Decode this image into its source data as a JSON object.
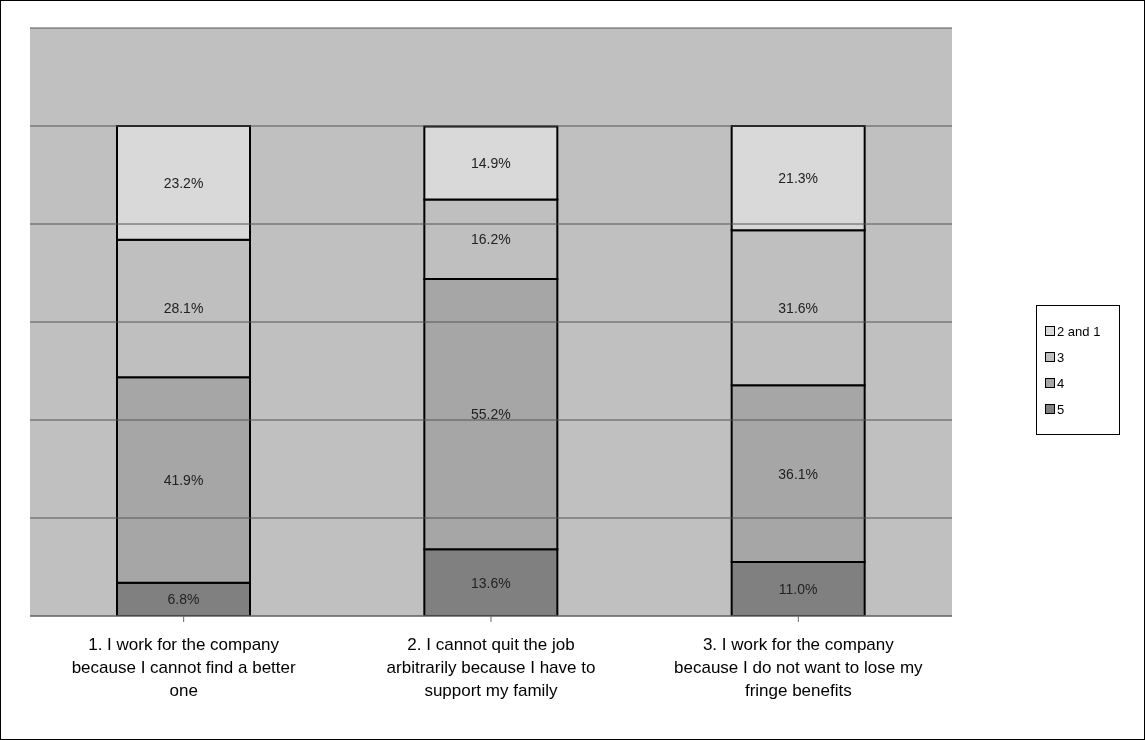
{
  "chart_data": {
    "type": "bar",
    "stacked": true,
    "categories": [
      "1. I work for the company because I cannot find a better one",
      "2. I cannot quit the job arbitrarily because I have to support my family",
      "3. I work for the company because I do not want to lose my fringe benefits"
    ],
    "series": [
      {
        "name": "5",
        "color": "#808080",
        "values": [
          6.8,
          13.6,
          11.0
        ],
        "value_labels": [
          "6.8%",
          "13.6%",
          "11.0%"
        ]
      },
      {
        "name": "4",
        "color": "#a6a6a6",
        "values": [
          41.9,
          55.2,
          36.1
        ],
        "value_labels": [
          "41.9%",
          "55.2%",
          "36.1%"
        ]
      },
      {
        "name": "3",
        "color": "#bfbfbf",
        "values": [
          28.1,
          16.2,
          31.6
        ],
        "value_labels": [
          "28.1%",
          "16.2%",
          "31.6%"
        ]
      },
      {
        "name": "2 and 1",
        "color": "#d9d9d9",
        "values": [
          23.2,
          14.9,
          21.3
        ],
        "value_labels": [
          "23.2%",
          "14.9%",
          "21.3%"
        ]
      }
    ],
    "ylim": [
      0,
      120
    ],
    "yticks": [
      {
        "value": 0,
        "label": null
      },
      {
        "value": 20,
        "label": null
      },
      {
        "value": 40,
        "label": null
      },
      {
        "value": 60,
        "label": null
      },
      {
        "value": 80,
        "label": null
      },
      {
        "value": 100,
        "label": null
      },
      {
        "value": 120,
        "label": null
      }
    ],
    "tick_labels": "x",
    "grid": "y",
    "legend": "right"
  }
}
